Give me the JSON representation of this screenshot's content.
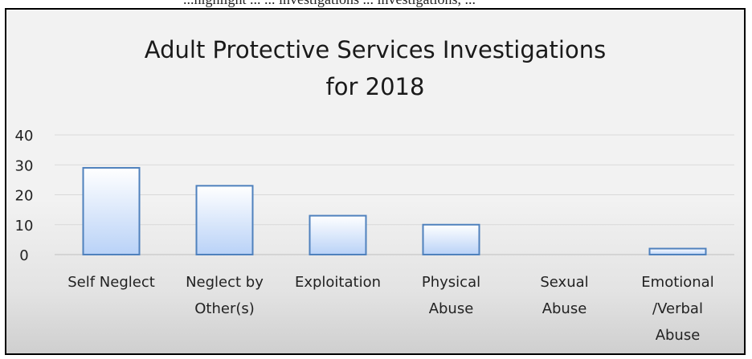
{
  "page_caption": "...highlight ... ... investigations ... investigations, ...",
  "chart_data": {
    "type": "bar",
    "title_lines": [
      "Adult Protective Services Investigations",
      "for 2018"
    ],
    "categories": [
      [
        "Self Neglect"
      ],
      [
        "Neglect by",
        "Other(s)"
      ],
      [
        "Exploitation"
      ],
      [
        "Physical",
        "Abuse"
      ],
      [
        "Sexual",
        "Abuse"
      ],
      [
        "Emotional",
        "/Verbal",
        "Abuse"
      ]
    ],
    "values": [
      29,
      23,
      13,
      10,
      0,
      2
    ],
    "yticks": [
      0,
      10,
      20,
      30,
      40
    ],
    "ylim": [
      0,
      40
    ],
    "grid": true,
    "legend": "none",
    "colors": {
      "bar_fill_top": "#ffffff",
      "bar_fill_bottom": "#b9d2f7",
      "bar_stroke": "#4f81bd",
      "gridline": "#d9d9d9",
      "axis": "#bfbfbf"
    }
  }
}
